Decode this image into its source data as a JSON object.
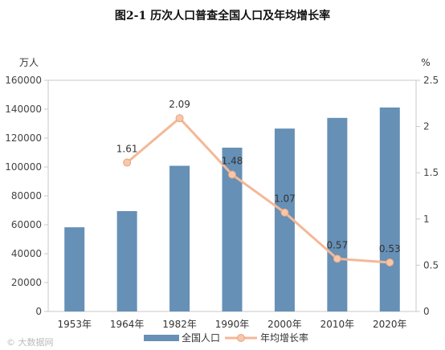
{
  "chart_data": {
    "type": "bar+line",
    "title": "图2-1    历次人口普查全国人口及年均增长率",
    "categories": [
      "1953年",
      "1964年",
      "1982年",
      "1990年",
      "2000年",
      "2010年",
      "2020年"
    ],
    "series": [
      {
        "name": "全国人口",
        "type": "bar",
        "axis": "left",
        "values": [
          58260,
          69458,
          100818,
          113368,
          126583,
          133972,
          141178
        ]
      },
      {
        "name": "年均增长率",
        "type": "line",
        "axis": "right",
        "values": [
          null,
          1.61,
          2.09,
          1.48,
          1.07,
          0.57,
          0.53
        ],
        "labels": [
          "",
          "1.61",
          "2.09",
          "1.48",
          "1.07",
          "0.57",
          "0.53"
        ]
      }
    ],
    "y_left": {
      "unit": "万人",
      "ylim": [
        0,
        160000
      ],
      "ticks": [
        "0",
        "20000",
        "40000",
        "60000",
        "80000",
        "100000",
        "120000",
        "140000",
        "160000"
      ]
    },
    "y_right": {
      "unit": "%",
      "ylim": [
        0,
        2.5
      ],
      "ticks": [
        "0",
        "0.5",
        "1",
        "1.5",
        "2",
        "2.5"
      ]
    },
    "grid": false,
    "legend": "bottom",
    "colors": {
      "bar": "#6690b6",
      "line": "#f4b896",
      "marker_fill": "#f6c7ab",
      "marker_stroke": "#e9a47f",
      "frame": "#c9c9c9"
    }
  },
  "watermark": "© 大数据网"
}
